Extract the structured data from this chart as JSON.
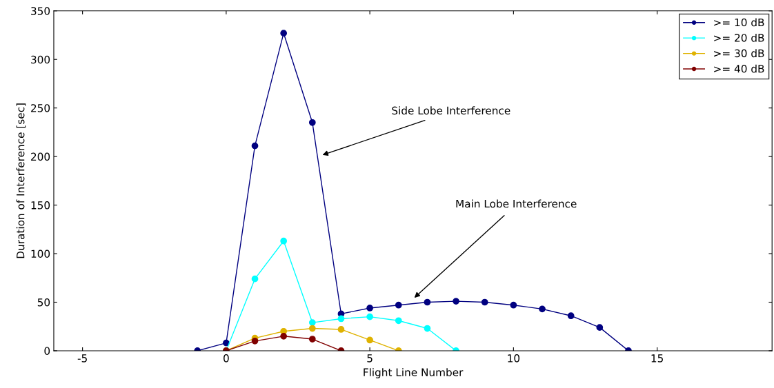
{
  "chart_data": {
    "type": "line",
    "xlabel": "Flight Line Number",
    "ylabel": "Duration of Interference [sec]",
    "series": [
      {
        "name": ">= 10 dB",
        "color": "#000080",
        "x": [
          -1,
          0,
          1,
          2,
          3,
          4,
          5,
          6,
          7,
          8,
          9,
          10,
          11,
          12,
          13,
          14
        ],
        "values": [
          0,
          8,
          211,
          327,
          235,
          38,
          44,
          47,
          50,
          51,
          50,
          47,
          43,
          36,
          24,
          0
        ]
      },
      {
        "name": ">= 20 dB",
        "color": "#00ffff",
        "x": [
          0,
          1,
          2,
          3,
          4,
          5,
          6,
          7,
          8
        ],
        "values": [
          0,
          74,
          113,
          29,
          33,
          35,
          31,
          23,
          0
        ]
      },
      {
        "name": ">= 30 dB",
        "color": "#dfb200",
        "x": [
          0,
          1,
          2,
          3,
          4,
          5,
          6
        ],
        "values": [
          0,
          13,
          20,
          23,
          22,
          11,
          0
        ]
      },
      {
        "name": ">= 40 dB",
        "color": "#800000",
        "x": [
          0,
          1,
          2,
          3,
          4
        ],
        "values": [
          0,
          10,
          15,
          12,
          0
        ]
      }
    ],
    "annotations": [
      "Side Lobe Interference",
      "Main Lobe Interference"
    ],
    "xlim": [
      -6,
      19
    ],
    "xticks": [
      -5,
      0,
      5,
      10,
      15
    ],
    "ylim": [
      0,
      350
    ],
    "yticks": [
      0,
      50,
      100,
      150,
      200,
      250,
      300,
      350
    ],
    "marker": "circle",
    "line_style": "solid",
    "legend": "top right",
    "grid": false
  }
}
